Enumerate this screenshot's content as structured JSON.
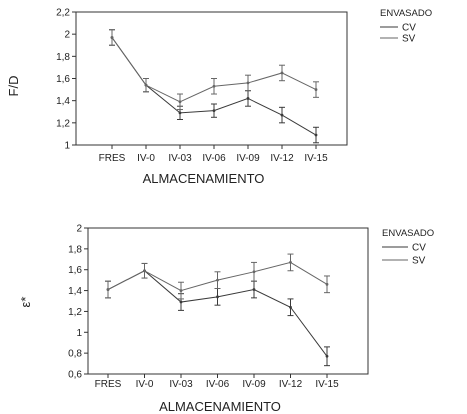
{
  "colors": {
    "axis": "#333333",
    "cv": "#3a3a3a",
    "sv": "#666666",
    "text": "#222222"
  },
  "chart_data": [
    {
      "type": "line",
      "categories": [
        "FRES",
        "IV-0",
        "IV-03",
        "IV-06",
        "IV-09",
        "IV-12",
        "IV-15"
      ],
      "xlabel": "ALMACENAMIENTO",
      "ylabel": "F/D",
      "ylim": [
        1,
        2.2
      ],
      "yticks": [
        1,
        1.2,
        1.4,
        1.6,
        1.8,
        2,
        2.2
      ],
      "ytick_labels": [
        "1",
        "1,2",
        "1,4",
        "1,6",
        "1,8",
        "2",
        "2,2"
      ],
      "legend": {
        "title": "ENVASADO",
        "placement": "right"
      },
      "series": [
        {
          "name": "CV",
          "values": [
            1.97,
            1.54,
            1.29,
            1.31,
            1.42,
            1.27,
            1.09
          ],
          "err": [
            0.07,
            0.06,
            0.06,
            0.06,
            0.07,
            0.07,
            0.07
          ]
        },
        {
          "name": "SV",
          "values": [
            1.97,
            1.54,
            1.39,
            1.53,
            1.56,
            1.65,
            1.5
          ],
          "err": [
            0.07,
            0.06,
            0.07,
            0.07,
            0.07,
            0.07,
            0.07
          ]
        }
      ]
    },
    {
      "type": "line",
      "categories": [
        "FRES",
        "IV-0",
        "IV-03",
        "IV-06",
        "IV-09",
        "IV-12",
        "IV-15"
      ],
      "xlabel": "ALMACENAMIENTO",
      "ylabel": "ε*",
      "ylim": [
        0.6,
        2
      ],
      "yticks": [
        0.6,
        0.8,
        1,
        1.2,
        1.4,
        1.6,
        1.8,
        2
      ],
      "ytick_labels": [
        "0,6",
        "0,8",
        "1",
        "1,2",
        "1,4",
        "1,6",
        "1,8",
        "2"
      ],
      "legend": {
        "title": "ENVASADO",
        "placement": "right"
      },
      "series": [
        {
          "name": "CV",
          "values": [
            1.41,
            1.59,
            1.29,
            1.34,
            1.41,
            1.24,
            0.77
          ],
          "err": [
            0.08,
            0.07,
            0.08,
            0.08,
            0.08,
            0.08,
            0.09
          ]
        },
        {
          "name": "SV",
          "values": [
            1.41,
            1.59,
            1.4,
            1.5,
            1.58,
            1.67,
            1.46
          ],
          "err": [
            0.08,
            0.07,
            0.08,
            0.08,
            0.09,
            0.08,
            0.08
          ]
        }
      ]
    }
  ]
}
